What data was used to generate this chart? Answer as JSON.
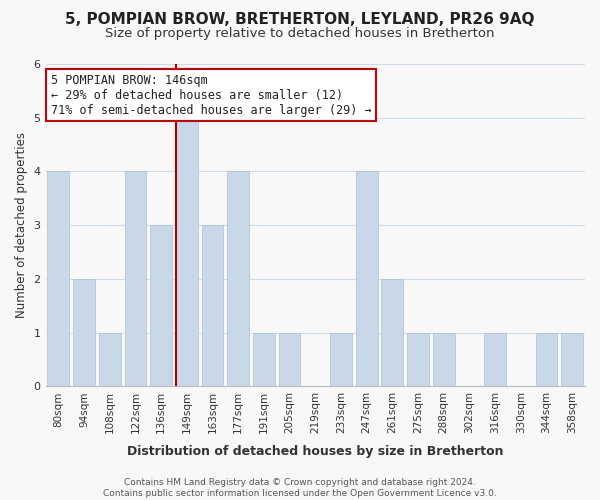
{
  "title": "5, POMPIAN BROW, BRETHERTON, LEYLAND, PR26 9AQ",
  "subtitle": "Size of property relative to detached houses in Bretherton",
  "xlabel": "Distribution of detached houses by size in Bretherton",
  "ylabel": "Number of detached properties",
  "categories": [
    "80sqm",
    "94sqm",
    "108sqm",
    "122sqm",
    "136sqm",
    "149sqm",
    "163sqm",
    "177sqm",
    "191sqm",
    "205sqm",
    "219sqm",
    "233sqm",
    "247sqm",
    "261sqm",
    "275sqm",
    "288sqm",
    "302sqm",
    "316sqm",
    "330sqm",
    "344sqm",
    "358sqm"
  ],
  "values": [
    4,
    2,
    1,
    4,
    3,
    5,
    3,
    4,
    1,
    1,
    0,
    1,
    4,
    2,
    1,
    1,
    0,
    1,
    0,
    1,
    1
  ],
  "highlight_index": 5,
  "bar_color": "#c8d8e8",
  "bar_edge_color": "#a0b8cc",
  "highlight_line_color": "#aa0000",
  "background_color": "#f8f8f8",
  "grid_color": "#d0dce8",
  "annotation_text_line1": "5 POMPIAN BROW: 146sqm",
  "annotation_text_line2": "← 29% of detached houses are smaller (12)",
  "annotation_text_line3": "71% of semi-detached houses are larger (29) →",
  "annotation_border_color": "#cc0000",
  "footnote": "Contains HM Land Registry data © Crown copyright and database right 2024.\nContains public sector information licensed under the Open Government Licence v3.0.",
  "ylim": [
    0,
    6
  ],
  "title_fontsize": 11,
  "subtitle_fontsize": 9.5,
  "xlabel_fontsize": 9,
  "ylabel_fontsize": 8.5,
  "tick_fontsize": 7.5,
  "annotation_fontsize": 8.5,
  "footnote_fontsize": 6.5
}
